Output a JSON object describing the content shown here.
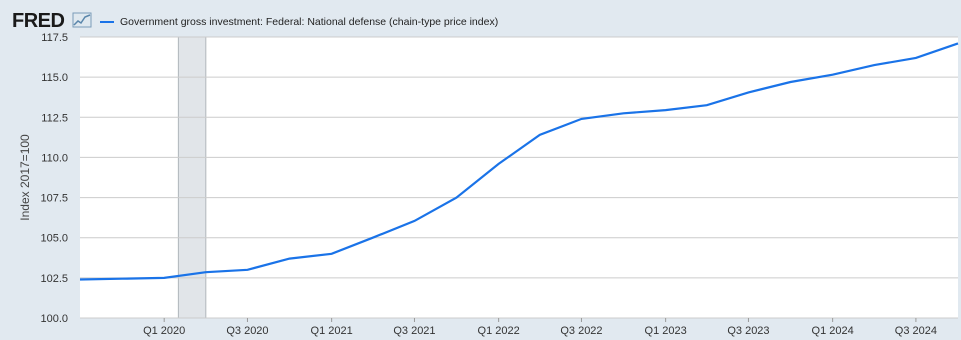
{
  "logo": {
    "text": "FRED",
    "icon": "fred-line-chart-icon"
  },
  "colors": {
    "frame_background": "#e1e9f0",
    "plot_background": "#ffffff",
    "series_line": "#1a73e8",
    "gridline": "#cccccc",
    "recession_shade": "#e1e5e9"
  },
  "chart_data": {
    "type": "line",
    "title": "",
    "ylabel": "Index 2017=100",
    "xlabel": "",
    "legend": "top-left",
    "grid": true,
    "ylim": [
      100.0,
      117.5
    ],
    "y_ticks": [
      "100.0",
      "102.5",
      "105.0",
      "107.5",
      "110.0",
      "112.5",
      "115.0",
      "117.5"
    ],
    "x_ticks": [
      "Q1 2020",
      "Q3 2020",
      "Q1 2021",
      "Q3 2021",
      "Q1 2022",
      "Q3 2022",
      "Q1 2023",
      "Q3 2023",
      "Q1 2024",
      "Q3 2024"
    ],
    "recession": {
      "start": "2020-02",
      "end": "2020-04"
    },
    "series": [
      {
        "name": "Government gross investment: Federal: National defense (chain-type price index)",
        "x": [
          "2019-07-01",
          "2019-10-01",
          "2020-01-01",
          "2020-04-01",
          "2020-07-01",
          "2020-10-01",
          "2021-01-01",
          "2021-04-01",
          "2021-07-01",
          "2021-10-01",
          "2022-01-01",
          "2022-04-01",
          "2022-07-01",
          "2022-10-01",
          "2023-01-01",
          "2023-04-01",
          "2023-07-01",
          "2023-10-01",
          "2024-01-01",
          "2024-04-01",
          "2024-07-01",
          "2024-10-01"
        ],
        "values": [
          102.4,
          102.45,
          102.5,
          102.85,
          103.0,
          103.7,
          104.0,
          105.0,
          106.05,
          107.5,
          109.6,
          111.4,
          112.4,
          112.75,
          112.95,
          113.25,
          114.05,
          114.7,
          115.15,
          115.75,
          116.2,
          117.1
        ]
      }
    ]
  }
}
